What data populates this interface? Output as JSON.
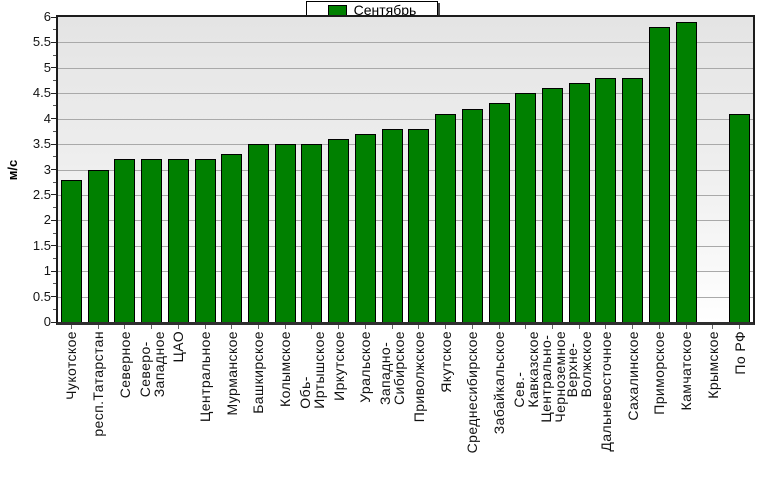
{
  "legend": {
    "label": "Сентябрь",
    "swatch_color": "#008000"
  },
  "chart_data": {
    "type": "bar",
    "title": "",
    "xlabel": "",
    "ylabel": "м/с",
    "ylim": [
      0,
      6
    ],
    "ytick_step": 0.5,
    "grid": "horizontal",
    "legend_position": "top-center",
    "legend_entries": [
      "Сентябрь"
    ],
    "bar_color": "#008000",
    "categories": [
      "Чукотское",
      "респ.Татарстан",
      "Северное",
      "Северо-\nЗападное",
      "ЦАО",
      "Центральное",
      "Мурманское",
      "Башкирское",
      "Колымское",
      "Обь-\nИртышское",
      "Иркутское",
      "Уральское",
      "Западно-\nСибирское",
      "Приволжское",
      "Якутское",
      "Среднесибирское",
      "Забайкальское",
      "Сев.-\nКавказское",
      "Центрально-\nЧерноземное",
      "Верхне-\nВолжское",
      "Дальневосточное",
      "Сахалинское",
      "Приморское",
      "Камчатское",
      "Крымское",
      "По РФ"
    ],
    "values": [
      2.8,
      3,
      3.2,
      3.2,
      3.2,
      3.2,
      3.3,
      3.5,
      3.5,
      3.5,
      3.6,
      3.7,
      3.8,
      3.8,
      4.1,
      4.2,
      4.3,
      4.5,
      4.6,
      4.7,
      4.8,
      4.8,
      5.8,
      5.9,
      null,
      4.1
    ]
  }
}
